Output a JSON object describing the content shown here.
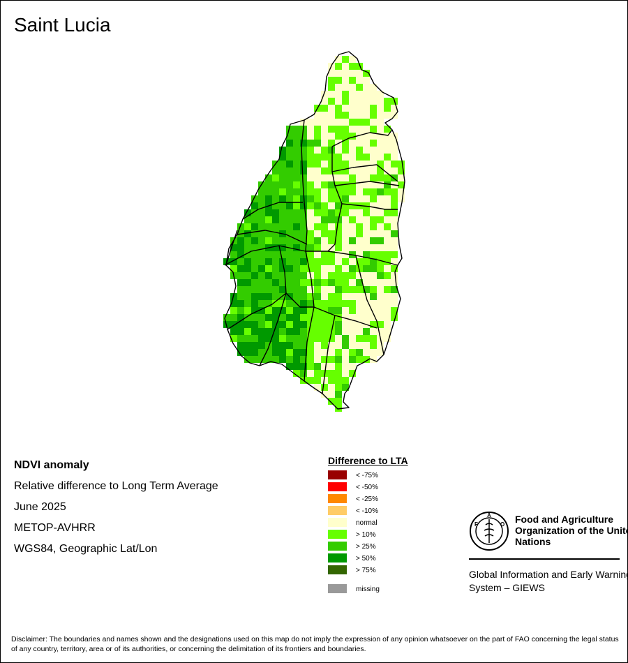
{
  "title": "Saint Lucia",
  "info": {
    "product": "NDVI anomaly",
    "description": "Relative difference to Long Term Average",
    "period": "June 2025",
    "sensor": "METOP-AVHRR",
    "projection": "WGS84, Geographic Lat/Lon"
  },
  "legend": {
    "title": "Difference to LTA",
    "items": [
      {
        "label": "< -75%",
        "color": "#990000"
      },
      {
        "label": "< -50%",
        "color": "#ff0000"
      },
      {
        "label": "< -25%",
        "color": "#ff8800"
      },
      {
        "label": "< -10%",
        "color": "#ffcc66"
      },
      {
        "label": "normal",
        "color": "#ffffcc"
      },
      {
        "label": "> 10%",
        "color": "#66ff00"
      },
      {
        "label": "> 25%",
        "color": "#33cc00"
      },
      {
        "label": "> 50%",
        "color": "#009900"
      },
      {
        "label": "> 75%",
        "color": "#336600"
      },
      {
        "label": "missing",
        "color": "#999999"
      }
    ]
  },
  "org": {
    "name": "Food and Agriculture Organization of the United Nations",
    "system": "Global Information and Early Warning System – GIEWS"
  },
  "disclaimer": "Disclaimer: The boundaries and names shown and the designations used on this map do not imply the expression of any opinion whatsoever on the part of FAO concerning the legal status of any country, territory, area or of its authorities, or concerning the delimitation of its frontiers and boundaries."
}
